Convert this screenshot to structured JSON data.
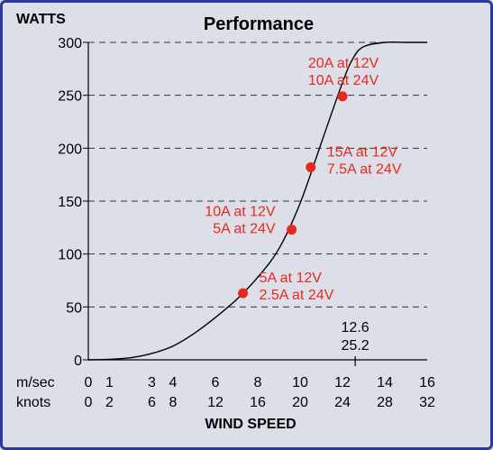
{
  "chart_data": {
    "type": "line",
    "title": "Performance",
    "ylabel": "WATTS",
    "xlabel": "WIND SPEED",
    "ylim": [
      0,
      300
    ],
    "xlim": [
      0,
      16
    ],
    "yticks": [
      "0",
      "50",
      "100",
      "150",
      "200",
      "250",
      "300"
    ],
    "grid": "horizontal dashed",
    "x_axes": [
      {
        "label": "m/sec",
        "ticks": [
          "0",
          "1",
          "3",
          "4",
          "6",
          "8",
          "10",
          "12",
          "14",
          "16"
        ]
      },
      {
        "label": "knots",
        "ticks": [
          "0",
          "2",
          "6",
          "8",
          "12",
          "16",
          "20",
          "24",
          "28",
          "32"
        ]
      }
    ],
    "x_tick_positions_msec": [
      0,
      1,
      3,
      4,
      6,
      8,
      10,
      12,
      14,
      16
    ],
    "marker_label": [
      "12.6",
      "25.2"
    ],
    "marker_x_msec": 12.6,
    "series": [
      {
        "x": [
          0,
          1,
          2,
          3,
          4,
          5,
          6,
          7,
          8,
          9,
          10,
          11,
          12,
          12.5,
          13,
          14,
          15,
          16
        ],
        "y": [
          0,
          0.5,
          2,
          6,
          13,
          25,
          40,
          57,
          78,
          105,
          148,
          205,
          262,
          285,
          296,
          300,
          300,
          300
        ],
        "color": "#000000"
      }
    ],
    "points": [
      {
        "x": 7.3,
        "y": 63,
        "label": [
          "5A at 12V",
          "2.5A at 24V"
        ],
        "label_side": "right"
      },
      {
        "x": 9.6,
        "y": 123,
        "label": [
          "10A at 12V",
          "5A at 24V"
        ],
        "label_side": "left"
      },
      {
        "x": 10.5,
        "y": 182,
        "label": [
          "15A at 12V",
          "7.5A at 24V"
        ],
        "label_side": "right"
      },
      {
        "x": 12.0,
        "y": 249,
        "label": [
          "20A at 12V",
          "10A at 24V"
        ],
        "label_side": "above"
      }
    ],
    "point_color": "#e8281e"
  }
}
